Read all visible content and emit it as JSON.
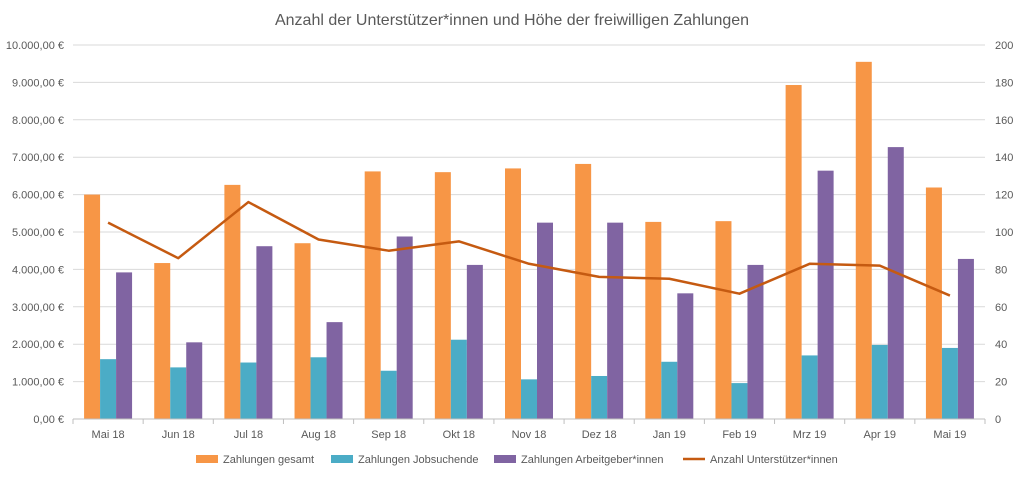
{
  "chart_data": {
    "type": "bar",
    "title": "Anzahl der Unterstützer*innen und Höhe der freiwilligen Zahlungen",
    "categories": [
      "Mai 18",
      "Jun 18",
      "Jul 18",
      "Aug 18",
      "Sep 18",
      "Okt 18",
      "Nov 18",
      "Dez 18",
      "Jan 19",
      "Feb 19",
      "Mrz 19",
      "Apr 19",
      "Mai 19"
    ],
    "y_left": {
      "ylim": [
        0,
        10000
      ],
      "ticks": [
        0,
        1000,
        2000,
        3000,
        4000,
        5000,
        6000,
        7000,
        8000,
        9000,
        10000
      ],
      "tick_labels": [
        "0,00 €",
        "1.000,00 €",
        "2.000,00 €",
        "3.000,00 €",
        "4.000,00 €",
        "5.000,00 €",
        "6.000,00 €",
        "7.000,00 €",
        "8.000,00 €",
        "9.000,00 €",
        "10.000,00 €"
      ]
    },
    "y_right": {
      "ylim": [
        0,
        200
      ],
      "ticks": [
        0,
        20,
        40,
        60,
        80,
        100,
        120,
        140,
        160,
        180,
        200
      ],
      "tick_labels": [
        "0",
        "20",
        "40",
        "60",
        "80",
        "100",
        "120",
        "140",
        "160",
        "180",
        "200"
      ]
    },
    "grid": true,
    "legend": "bottom",
    "series": [
      {
        "name": "Zahlungen gesamt",
        "kind": "bar",
        "axis": "left",
        "color": "#f79646",
        "values": [
          6000,
          4170,
          6260,
          4700,
          6620,
          6600,
          6700,
          6820,
          5270,
          5290,
          8930,
          9550,
          6190
        ]
      },
      {
        "name": "Zahlungen Jobsuchende",
        "kind": "bar",
        "axis": "left",
        "color": "#4bacc6",
        "values": [
          1600,
          1380,
          1510,
          1650,
          1290,
          2120,
          1060,
          1150,
          1530,
          960,
          1700,
          1980,
          1900
        ]
      },
      {
        "name": "Zahlungen Arbeitgeber*innen",
        "kind": "bar",
        "axis": "left",
        "color": "#8064a2",
        "values": [
          3920,
          2050,
          4620,
          2590,
          4880,
          4120,
          5250,
          5250,
          3360,
          4120,
          6640,
          7270,
          4280
        ]
      },
      {
        "name": "Anzahl Unterstützer*innen",
        "kind": "line",
        "axis": "right",
        "color": "#c55a11",
        "values": [
          105,
          86,
          116,
          96,
          90,
          95,
          83,
          76,
          75,
          67,
          83,
          82,
          66
        ]
      }
    ]
  }
}
